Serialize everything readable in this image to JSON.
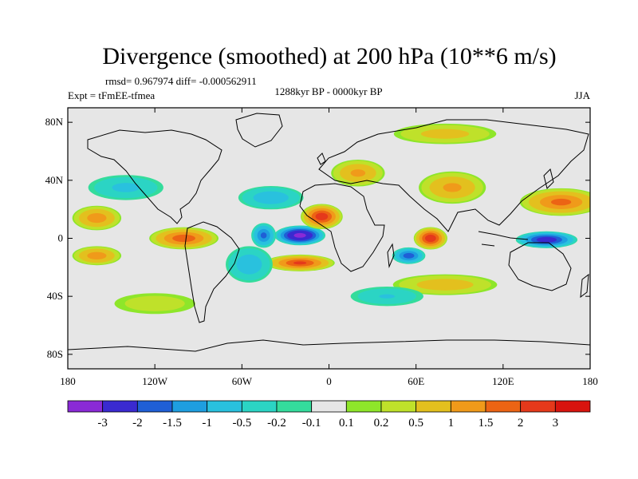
{
  "chart_data": {
    "type": "heatmap",
    "title": "Divergence (smoothed) at 200 hPa (10**6 m/s)",
    "stats_text": "rmsd= 0.967974 diff= -0.000562911",
    "left_label": "Expt = tFmEE-tfmea",
    "center_label": "1288kyr BP - 0000kyr BP",
    "right_label": "JJA",
    "x_range": [
      -180,
      180
    ],
    "y_range": [
      -90,
      90
    ],
    "x_ticks": [
      {
        "value": -180,
        "label": "180"
      },
      {
        "value": -120,
        "label": "120W"
      },
      {
        "value": -60,
        "label": "60W"
      },
      {
        "value": 0,
        "label": "0"
      },
      {
        "value": 60,
        "label": "60E"
      },
      {
        "value": 120,
        "label": "120E"
      },
      {
        "value": 180,
        "label": "180"
      }
    ],
    "y_ticks": [
      {
        "value": 80,
        "label": "80N"
      },
      {
        "value": 40,
        "label": "40N"
      },
      {
        "value": 0,
        "label": "0"
      },
      {
        "value": -40,
        "label": "40S"
      },
      {
        "value": -80,
        "label": "80S"
      }
    ],
    "colorbar": {
      "labels": [
        "-3",
        "-2",
        "-1.5",
        "-1",
        "-0.5",
        "-0.2",
        "-0.1",
        "0.1",
        "0.2",
        "0.5",
        "1",
        "1.5",
        "2",
        "3"
      ],
      "colors": [
        "#8a2ad6",
        "#3a2ad0",
        "#1f5fd6",
        "#1e9ee0",
        "#29c1de",
        "#2bd4c4",
        "#34dc9c",
        "#e6e6e6",
        "#8ee62a",
        "#bfe12a",
        "#e3c01e",
        "#f09a1a",
        "#ec6414",
        "#e5391b",
        "#d8140e"
      ]
    },
    "features": [
      {
        "name": "atlantic-convergence-min",
        "lon": -20,
        "lat": 2,
        "rx": 18,
        "ry": 7,
        "value": -3.2
      },
      {
        "name": "west-africa-divergence",
        "lon": -5,
        "lat": 15,
        "rx": 15,
        "ry": 9,
        "value": 2.3
      },
      {
        "name": "south-atlantic-divergence",
        "lon": -20,
        "lat": -17,
        "rx": 25,
        "ry": 6,
        "value": 2.0
      },
      {
        "name": "east-pacific-divergence",
        "lon": -100,
        "lat": 0,
        "rx": 25,
        "ry": 8,
        "value": 1.8
      },
      {
        "name": "central-pacific-divergence-n",
        "lon": -160,
        "lat": 14,
        "rx": 18,
        "ry": 9,
        "value": 1.3
      },
      {
        "name": "central-pacific-divergence-s",
        "lon": -160,
        "lat": -12,
        "rx": 18,
        "ry": 7,
        "value": 1.3
      },
      {
        "name": "indian-ocean-divergence",
        "lon": 70,
        "lat": 0,
        "rx": 12,
        "ry": 8,
        "value": 2.4
      },
      {
        "name": "west-pacific-convergence",
        "lon": 150,
        "lat": -1,
        "rx": 22,
        "ry": 6,
        "value": -2.4
      },
      {
        "name": "indian-ocean-convergence",
        "lon": 55,
        "lat": -12,
        "rx": 12,
        "ry": 6,
        "value": -1.8
      },
      {
        "name": "south-america-convergence",
        "lon": -55,
        "lat": -18,
        "rx": 18,
        "ry": 14,
        "value": -0.8
      },
      {
        "name": "brazil-convergence",
        "lon": -45,
        "lat": 2,
        "rx": 9,
        "ry": 9,
        "value": -1.6
      },
      {
        "name": "north-atlantic-convergence",
        "lon": -40,
        "lat": 28,
        "rx": 25,
        "ry": 9,
        "value": -0.8
      },
      {
        "name": "north-pacific-convergence",
        "lon": -140,
        "lat": 35,
        "rx": 30,
        "ry": 10,
        "value": -0.6
      },
      {
        "name": "eurasia-divergence",
        "lon": 20,
        "lat": 45,
        "rx": 20,
        "ry": 10,
        "value": 1.1
      },
      {
        "name": "asia-divergence",
        "lon": 85,
        "lat": 35,
        "rx": 25,
        "ry": 12,
        "value": 1.1
      },
      {
        "name": "pacific-divergence-n",
        "lon": 160,
        "lat": 25,
        "rx": 30,
        "ry": 10,
        "value": 1.6
      },
      {
        "name": "southern-ocean-divergence",
        "lon": 80,
        "lat": -32,
        "rx": 40,
        "ry": 8,
        "value": 0.8
      },
      {
        "name": "south-indian-convergence",
        "lon": 40,
        "lat": -40,
        "rx": 30,
        "ry": 8,
        "value": -0.5
      },
      {
        "name": "south-pacific-divergence",
        "lon": -120,
        "lat": -45,
        "rx": 35,
        "ry": 9,
        "value": 0.4
      },
      {
        "name": "arctic-divergence",
        "lon": 80,
        "lat": 72,
        "rx": 40,
        "ry": 8,
        "value": 0.7
      }
    ]
  }
}
